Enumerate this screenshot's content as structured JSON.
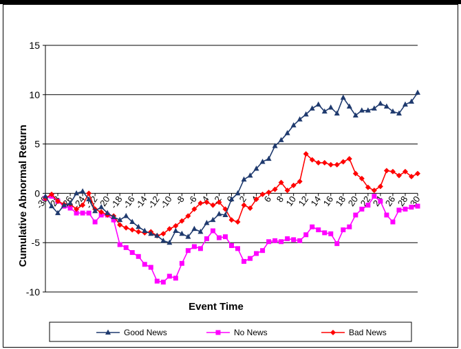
{
  "chart_data": {
    "type": "line",
    "xlabel": "Event Time",
    "ylabel": "Cumulative Abnormal Return",
    "xlim": [
      -30,
      30
    ],
    "ylim": [
      -10,
      15
    ],
    "y_ticks": [
      15,
      10,
      5,
      0,
      -5,
      -10
    ],
    "x_tick_step": 2,
    "grid": "horizontal",
    "legend_position": "bottom",
    "x": [
      -30,
      -29,
      -28,
      -27,
      -26,
      -25,
      -24,
      -23,
      -22,
      -21,
      -20,
      -19,
      -18,
      -17,
      -16,
      -15,
      -14,
      -13,
      -12,
      -11,
      -10,
      -9,
      -8,
      -7,
      -6,
      -5,
      -4,
      -3,
      -2,
      -1,
      0,
      1,
      2,
      3,
      4,
      5,
      6,
      7,
      8,
      9,
      10,
      11,
      12,
      13,
      14,
      15,
      16,
      17,
      18,
      19,
      20,
      21,
      22,
      23,
      24,
      25,
      26,
      27,
      28,
      29,
      30
    ],
    "series": [
      {
        "name": "Good News",
        "color": "#1F3A6E",
        "marker": "triangle",
        "values": [
          -0.3,
          -1.3,
          -2.0,
          -1.2,
          -1.0,
          0.0,
          0.2,
          -0.6,
          -1.8,
          -1.4,
          -2.0,
          -2.4,
          -2.7,
          -2.3,
          -2.9,
          -3.4,
          -3.8,
          -4.1,
          -4.3,
          -4.8,
          -5.0,
          -3.8,
          -4.1,
          -4.4,
          -3.6,
          -3.9,
          -3.0,
          -2.7,
          -2.1,
          -2.2,
          -0.6,
          0.0,
          1.4,
          1.8,
          2.5,
          3.2,
          3.5,
          4.8,
          5.4,
          6.1,
          6.9,
          7.5,
          8.0,
          8.6,
          9.0,
          8.3,
          8.7,
          8.1,
          9.7,
          8.8,
          7.9,
          8.4,
          8.4,
          8.6,
          9.1,
          8.8,
          8.3,
          8.1,
          9.0,
          9.3,
          10.2
        ]
      },
      {
        "name": "No News",
        "color": "#FF00FF",
        "marker": "square",
        "values": [
          -0.5,
          -0.3,
          -0.8,
          -1.3,
          -1.5,
          -2.0,
          -2.0,
          -2.0,
          -2.9,
          -2.2,
          -2.2,
          -2.7,
          -5.2,
          -5.5,
          -6.0,
          -6.4,
          -7.2,
          -7.5,
          -8.9,
          -9.0,
          -8.4,
          -8.6,
          -7.1,
          -5.8,
          -5.4,
          -5.6,
          -4.6,
          -3.8,
          -4.5,
          -4.4,
          -5.3,
          -5.6,
          -6.9,
          -6.6,
          -6.1,
          -5.8,
          -4.9,
          -4.8,
          -4.9,
          -4.6,
          -4.7,
          -4.8,
          -4.2,
          -3.4,
          -3.7,
          -4.0,
          -4.1,
          -5.1,
          -3.7,
          -3.4,
          -2.2,
          -1.6,
          -1.2,
          -0.3,
          -0.8,
          -2.2,
          -2.9,
          -1.7,
          -1.6,
          -1.4,
          -1.3
        ]
      },
      {
        "name": "Bad News",
        "color": "#FF0000",
        "marker": "diamond",
        "values": [
          -0.5,
          -0.1,
          -0.8,
          -1.1,
          -1.1,
          -1.6,
          -1.2,
          0.0,
          -1.6,
          -1.9,
          -2.2,
          -2.3,
          -3.2,
          -3.5,
          -3.7,
          -3.9,
          -4.0,
          -3.9,
          -4.3,
          -4.1,
          -3.6,
          -3.3,
          -2.8,
          -2.3,
          -1.6,
          -1.0,
          -0.9,
          -1.2,
          -0.9,
          -1.6,
          -2.7,
          -2.9,
          -1.2,
          -1.5,
          -0.6,
          -0.1,
          0.1,
          0.4,
          1.1,
          0.3,
          0.8,
          1.2,
          4.0,
          3.4,
          3.1,
          3.1,
          2.9,
          2.9,
          3.2,
          3.5,
          2.0,
          1.5,
          0.6,
          0.3,
          0.7,
          2.3,
          2.2,
          1.8,
          2.2,
          1.7,
          2.0
        ]
      }
    ]
  }
}
